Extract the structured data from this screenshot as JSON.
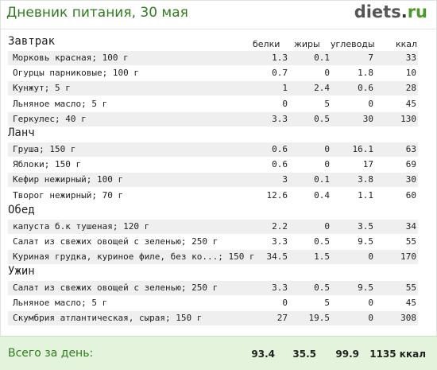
{
  "header": {
    "title": "Дневник питания, 30 мая",
    "logo_main": "diets",
    "logo_dot": ".",
    "logo_tld": "ru"
  },
  "columns": {
    "protein": "белки",
    "fat": "жиры",
    "carbs": "углеводы",
    "kcal": "ккал"
  },
  "meals": [
    {
      "title": "Завтрак",
      "items": [
        {
          "name": "Морковь красная; 100 г",
          "protein": "1.3",
          "fat": "0.1",
          "carbs": "7",
          "kcal": "33"
        },
        {
          "name": "Огурцы парниковые; 100 г",
          "protein": "0.7",
          "fat": "0",
          "carbs": "1.8",
          "kcal": "10"
        },
        {
          "name": "Кунжут; 5 г",
          "protein": "1",
          "fat": "2.4",
          "carbs": "0.6",
          "kcal": "28"
        },
        {
          "name": "Льняное масло; 5 г",
          "protein": "0",
          "fat": "5",
          "carbs": "0",
          "kcal": "45"
        },
        {
          "name": "Геркулес; 40 г",
          "protein": "3.3",
          "fat": "0.5",
          "carbs": "30",
          "kcal": "130"
        }
      ]
    },
    {
      "title": "Ланч",
      "items": [
        {
          "name": "Груша; 150 г",
          "protein": "0.6",
          "fat": "0",
          "carbs": "16.1",
          "kcal": "63"
        },
        {
          "name": "Яблоки; 150 г",
          "protein": "0.6",
          "fat": "0",
          "carbs": "17",
          "kcal": "69"
        },
        {
          "name": "Кефир нежирный; 100 г",
          "protein": "3",
          "fat": "0.1",
          "carbs": "3.8",
          "kcal": "30"
        },
        {
          "name": "Творог нежирный; 70 г",
          "protein": "12.6",
          "fat": "0.4",
          "carbs": "1.1",
          "kcal": "60"
        }
      ]
    },
    {
      "title": "Обед",
      "items": [
        {
          "name": "капуста б.к тушеная; 120 г",
          "protein": "2.2",
          "fat": "0",
          "carbs": "3.5",
          "kcal": "34"
        },
        {
          "name": "Салат из свежих овощей с зеленью; 250 г",
          "protein": "3.3",
          "fat": "0.5",
          "carbs": "9.5",
          "kcal": "55"
        },
        {
          "name": "Куриная грудка, куриное филе, без ко...; 150 г",
          "protein": "34.5",
          "fat": "1.5",
          "carbs": "0",
          "kcal": "170"
        }
      ]
    },
    {
      "title": "Ужин",
      "items": [
        {
          "name": "Салат из свежих овощей с зеленью; 250 г",
          "protein": "3.3",
          "fat": "0.5",
          "carbs": "9.5",
          "kcal": "55"
        },
        {
          "name": "Льняное масло; 5 г",
          "protein": "0",
          "fat": "5",
          "carbs": "0",
          "kcal": "45"
        },
        {
          "name": "Скумбрия атлантическая, сырая; 150 г",
          "protein": "27",
          "fat": "19.5",
          "carbs": "0",
          "kcal": "308"
        }
      ]
    }
  ],
  "totals": {
    "label": "Всего за день:",
    "protein": "93.4",
    "fat": "35.5",
    "carbs": "99.9",
    "kcal": "1135 ккал"
  },
  "colors": {
    "title_green": "#2e7d1d",
    "row_shade": "#efefef",
    "footer_bg": "#e4f3dc"
  }
}
